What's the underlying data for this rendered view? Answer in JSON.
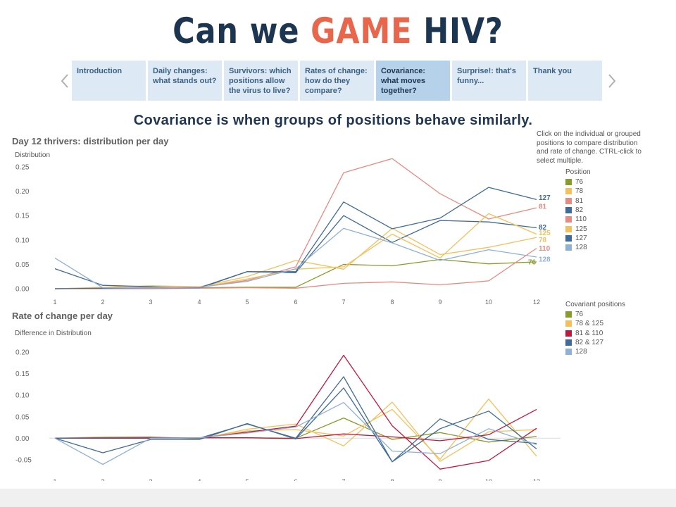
{
  "header": {
    "title_part1": "Can we ",
    "title_accent": "GAME",
    "title_part2": " HIV?"
  },
  "tabs": [
    {
      "label": "Introduction",
      "active": false
    },
    {
      "label": "Daily changes: what stands out?",
      "active": false
    },
    {
      "label": "Survivors: which positions allow the virus to live?",
      "active": false
    },
    {
      "label": "Rates of change: how do they compare?",
      "active": false
    },
    {
      "label": "Covariance: what moves together?",
      "active": true
    },
    {
      "label": "Surprise!: that's funny...",
      "active": false
    },
    {
      "label": "Thank you",
      "active": false
    }
  ],
  "headline": "Covariance is when groups of positions behave similarly.",
  "instructions": "Click on the individual or grouped positions to compare distribution and rate of change. CTRL-click to select multiple.",
  "legend1": {
    "title": "Position",
    "items": [
      {
        "label": "76",
        "color": "#8a9a2b"
      },
      {
        "label": "78",
        "color": "#f5c05a"
      },
      {
        "label": "81",
        "color": "#e88a82"
      },
      {
        "label": "82",
        "color": "#3f6b98"
      },
      {
        "label": "110",
        "color": "#e88a82"
      },
      {
        "label": "125",
        "color": "#f5c05a"
      },
      {
        "label": "127",
        "color": "#3f6b98"
      },
      {
        "label": "128",
        "color": "#8fb1d6"
      }
    ]
  },
  "legend2": {
    "title": "Covariant positions",
    "items": [
      {
        "label": "76",
        "color": "#8a9a2b"
      },
      {
        "label": "78 & 125",
        "color": "#f5c05a"
      },
      {
        "label": "81 & 110",
        "color": "#c2183b"
      },
      {
        "label": "82 & 127",
        "color": "#3f6b98"
      },
      {
        "label": "128",
        "color": "#8fb1d6"
      }
    ]
  },
  "chart_data": [
    {
      "type": "line",
      "title": "Day 12 thrivers: distribution per day",
      "xlabel": "",
      "ylabel": "Distribution",
      "x": [
        "1",
        "2",
        "3",
        "4",
        "5",
        "6",
        "7",
        "8",
        "9",
        "10",
        "12"
      ],
      "ylim": [
        0,
        0.25
      ],
      "yticks": [
        "0.00",
        "0.05",
        "0.10",
        "0.15",
        "0.20",
        "0.25"
      ],
      "grid": false,
      "legend": "right",
      "series": [
        {
          "name": "76",
          "color": "#8a9a2b",
          "values": [
            0.0,
            0.001,
            0.001,
            0.002,
            0.003,
            0.003,
            0.05,
            0.047,
            0.06,
            0.051,
            0.055
          ]
        },
        {
          "name": "78",
          "color": "#f5c05a",
          "values": [
            0.0,
            0.003,
            0.006,
            0.004,
            0.025,
            0.058,
            0.04,
            0.124,
            0.07,
            0.085,
            0.105
          ]
        },
        {
          "name": "81",
          "color": "#e88a82",
          "values": [
            0.0,
            0.001,
            0.003,
            0.003,
            0.017,
            0.045,
            0.238,
            0.267,
            0.195,
            0.143,
            0.166
          ]
        },
        {
          "name": "82",
          "color": "#3f6b98",
          "values": [
            0.041,
            0.007,
            0.004,
            0.001,
            0.035,
            0.033,
            0.15,
            0.095,
            0.14,
            0.137,
            0.125
          ]
        },
        {
          "name": "110",
          "color": "#e88a82",
          "values": [
            0.0,
            0.0,
            0.0,
            0.001,
            0.002,
            0.001,
            0.011,
            0.014,
            0.008,
            0.016,
            0.083
          ]
        },
        {
          "name": "125",
          "color": "#f5c05a",
          "values": [
            0.0,
            0.001,
            0.002,
            0.003,
            0.02,
            0.04,
            0.045,
            0.112,
            0.063,
            0.154,
            0.112
          ]
        },
        {
          "name": "127",
          "color": "#3f6b98",
          "values": [
            0.0,
            0.001,
            0.002,
            0.002,
            0.035,
            0.035,
            0.178,
            0.123,
            0.145,
            0.208,
            0.183
          ]
        },
        {
          "name": "128",
          "color": "#8fb1d6",
          "values": [
            0.063,
            0.002,
            0.002,
            0.003,
            0.015,
            0.041,
            0.124,
            0.094,
            0.058,
            0.08,
            0.065
          ]
        }
      ],
      "end_labels": [
        "76",
        "125",
        "81",
        "82",
        "110",
        "78",
        "127",
        "128"
      ]
    },
    {
      "type": "line",
      "title": "Rate of change per day",
      "xlabel": "",
      "ylabel": "Difference in Distribution",
      "x": [
        "1",
        "2",
        "3",
        "4",
        "5",
        "6",
        "7",
        "8",
        "9",
        "10",
        "12"
      ],
      "ylim": [
        -0.07,
        0.22
      ],
      "yticks": [
        "-0.05",
        "0.00",
        "0.05",
        "0.10",
        "0.15",
        "0.20"
      ],
      "grid": false,
      "legend": "right",
      "series": [
        {
          "name": "76",
          "color": "#8a9a2b",
          "values": [
            0.0,
            0.001,
            0.0,
            0.001,
            0.001,
            0.0,
            0.047,
            -0.003,
            0.013,
            -0.009,
            0.004
          ]
        },
        {
          "name": "78",
          "color": "#f5c05a",
          "values": [
            0.0,
            0.003,
            0.003,
            -0.002,
            0.021,
            0.033,
            -0.018,
            0.084,
            -0.054,
            0.015,
            0.02
          ]
        },
        {
          "name": "125",
          "color": "#f5c05a",
          "values": [
            0.0,
            0.001,
            0.001,
            0.001,
            0.017,
            0.02,
            0.005,
            0.067,
            -0.049,
            0.091,
            -0.042
          ]
        },
        {
          "name": "81",
          "color": "#c2183b",
          "values": [
            0.0,
            0.001,
            0.002,
            0.0,
            0.014,
            0.028,
            0.193,
            0.029,
            -0.072,
            -0.052,
            0.023
          ]
        },
        {
          "name": "110",
          "color": "#c2183b",
          "values": [
            0.0,
            0.0,
            0.0,
            0.001,
            0.001,
            -0.001,
            0.01,
            0.003,
            -0.006,
            0.008,
            0.067
          ]
        },
        {
          "name": "82",
          "color": "#3f6b98",
          "values": [
            0.0,
            -0.034,
            -0.003,
            -0.003,
            0.034,
            -0.002,
            0.117,
            -0.055,
            0.045,
            -0.003,
            -0.012
          ]
        },
        {
          "name": "127",
          "color": "#3f6b98",
          "values": [
            0.0,
            0.001,
            0.001,
            0.0,
            0.033,
            0.0,
            0.143,
            -0.055,
            0.022,
            0.063,
            -0.025
          ]
        },
        {
          "name": "128",
          "color": "#8fb1d6",
          "values": [
            0.0,
            -0.061,
            0.0,
            0.001,
            0.012,
            0.026,
            0.083,
            -0.03,
            -0.036,
            0.022,
            -0.015
          ]
        }
      ]
    }
  ]
}
